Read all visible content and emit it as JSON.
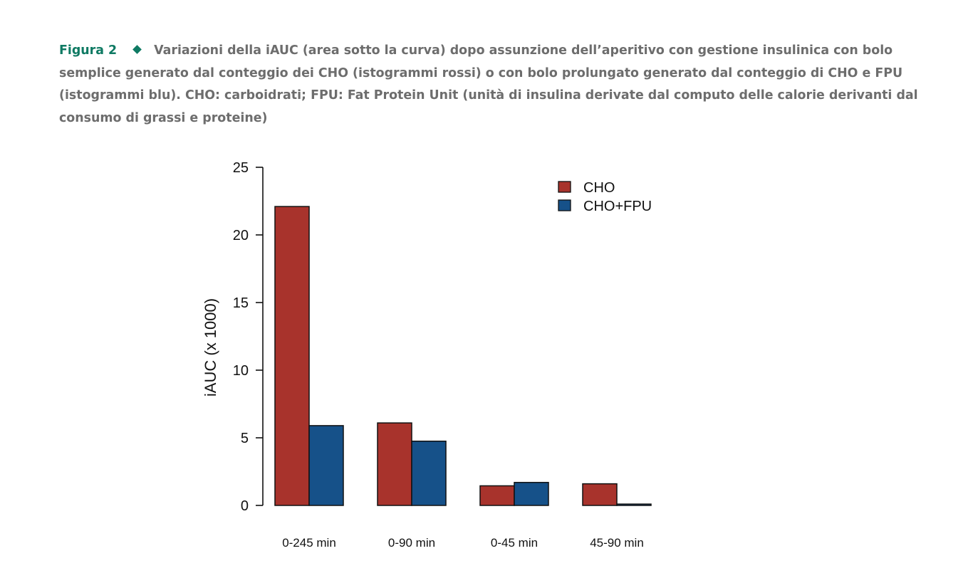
{
  "caption": {
    "label": "Figura 2",
    "text": "Variazioni della iAUC (area sotto la curva) dopo assunzione dell’aperitivo con gestione insulinica con bolo semplice generato dal conteggio dei CHO (istogrammi rossi) o con bolo prolungato generato dal conteggio di CHO e FPU (istogrammi blu). CHO: carboidrati; FPU: Fat Protein Unit (unità di insulina derivate dal computo delle calorie derivanti dal consumo di grassi e proteine)"
  },
  "colors": {
    "accent": "#0f7a63",
    "caption_text": "#6d6d6d"
  },
  "chart_data": {
    "type": "bar",
    "categories": [
      "0-245 min",
      "0-90 min",
      "0-45 min",
      "45-90 min"
    ],
    "series": [
      {
        "name": "CHO",
        "color": "#a8332c",
        "values": [
          22.1,
          6.1,
          1.45,
          1.6
        ]
      },
      {
        "name": "CHO+FPU",
        "color": "#165189",
        "values": [
          5.9,
          4.75,
          1.7,
          0.1
        ]
      }
    ],
    "ylabel": "iAUC (x 1000)",
    "xlabel": "",
    "ylim": [
      0,
      25
    ],
    "yticks": [
      0,
      5,
      10,
      15,
      20,
      25
    ],
    "grid": false,
    "legend": "top-right"
  }
}
